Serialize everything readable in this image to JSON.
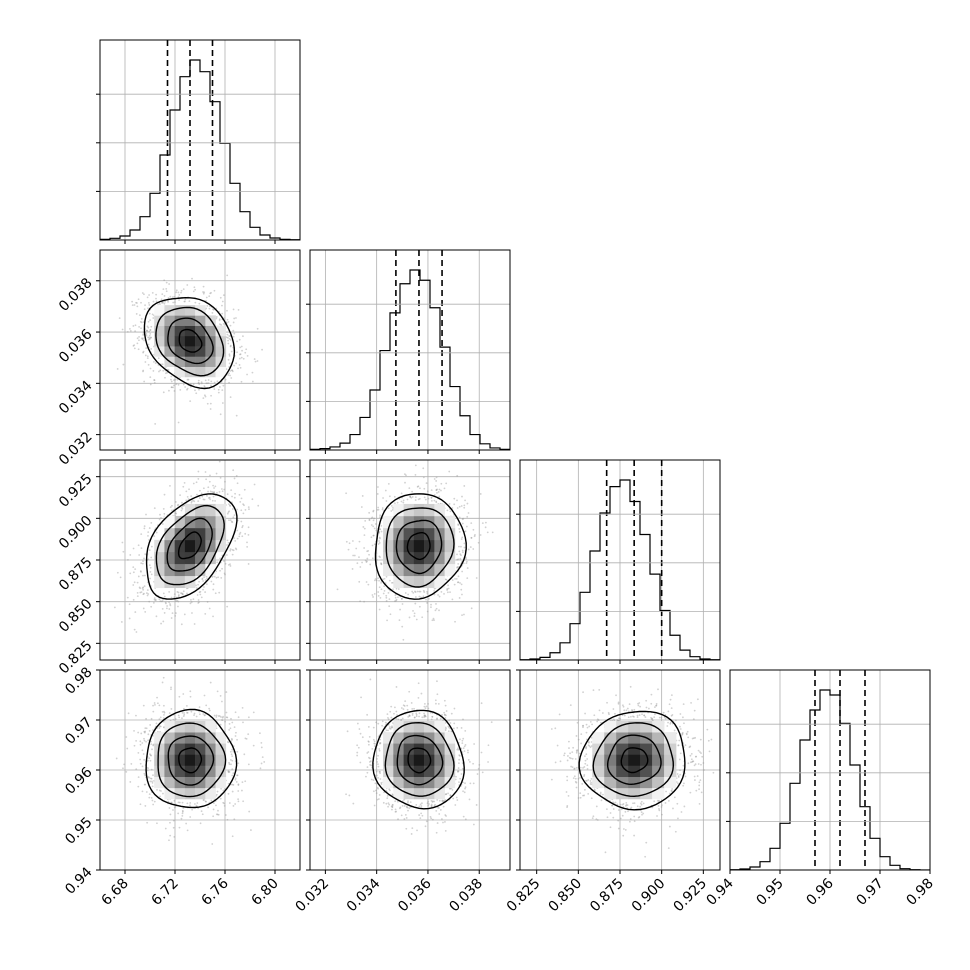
{
  "chart_data": {
    "type": "corner",
    "parameters": [
      {
        "ticks": [
          6.68,
          6.72,
          6.76,
          6.8
        ],
        "tick_labels": [
          "6.68",
          "6.72",
          "6.76",
          "6.80"
        ],
        "range": [
          6.66,
          6.82
        ],
        "mean": 6.732,
        "sd": 0.018,
        "quantiles": [
          6.714,
          6.732,
          6.75
        ]
      },
      {
        "ticks": [
          0.032,
          0.034,
          0.036,
          0.038
        ],
        "tick_labels": [
          "0.032",
          "0.034",
          "0.036",
          "0.038"
        ],
        "range": [
          0.0314,
          0.0392
        ],
        "mean": 0.03565,
        "sd": 0.00088,
        "quantiles": [
          0.03475,
          0.03565,
          0.03655
        ]
      },
      {
        "ticks": [
          0.825,
          0.85,
          0.875,
          0.9,
          0.925
        ],
        "tick_labels": [
          "0.825",
          "0.850",
          "0.875",
          "0.900",
          "0.925"
        ],
        "range": [
          0.815,
          0.935
        ],
        "mean": 0.8835,
        "sd": 0.0158,
        "quantiles": [
          0.867,
          0.8835,
          0.9
        ]
      },
      {
        "ticks": [
          0.94,
          0.95,
          0.96,
          0.97,
          0.98
        ],
        "tick_labels": [
          "0.94",
          "0.95",
          "0.96",
          "0.97",
          "0.98"
        ],
        "range": [
          0.94,
          0.98
        ],
        "mean": 0.962,
        "sd": 0.0049,
        "quantiles": [
          0.957,
          0.962,
          0.967
        ]
      }
    ],
    "histograms": [
      [
        2,
        5,
        12,
        30,
        70,
        140,
        255,
        390,
        490,
        540,
        505,
        415,
        290,
        170,
        85,
        38,
        15,
        6,
        2,
        1
      ],
      [
        2,
        4,
        9,
        20,
        45,
        95,
        175,
        290,
        400,
        485,
        525,
        495,
        415,
        300,
        185,
        100,
        45,
        18,
        6,
        2
      ],
      [
        1,
        3,
        8,
        22,
        52,
        110,
        205,
        330,
        445,
        525,
        545,
        480,
        380,
        260,
        150,
        75,
        30,
        10,
        3,
        1
      ],
      [
        1,
        3,
        9,
        25,
        65,
        140,
        260,
        390,
        480,
        540,
        525,
        440,
        315,
        190,
        95,
        40,
        14,
        4,
        1,
        0
      ]
    ],
    "correlations": [
      [
        1,
        -0.25,
        0.45,
        0.0
      ],
      [
        -0.25,
        1,
        0.05,
        -0.05
      ],
      [
        0.45,
        0.05,
        1,
        0.05
      ],
      [
        0.0,
        -0.05,
        0.05,
        1
      ]
    ],
    "contour_levels_sigma": [
      0.5,
      1.0,
      1.5,
      2.0
    ],
    "grid": true
  }
}
